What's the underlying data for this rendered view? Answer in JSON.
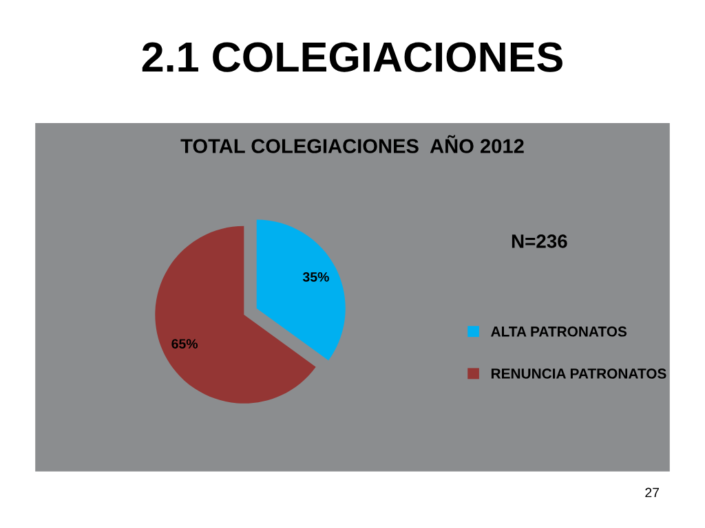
{
  "chart_data": {
    "type": "pie",
    "title": "2.1 COLEGIACIONES",
    "subtitle": "TOTAL COLEGIACIONES  AÑO 2012",
    "categories": [
      "ALTA PATRONATOS",
      "RENUNCIA PATRONATOS"
    ],
    "values": [
      35,
      65
    ],
    "colors": [
      "#00b0f0",
      "#943634"
    ],
    "value_labels": [
      "35%",
      "65%"
    ],
    "legend": "right",
    "annotations": [
      "N=236",
      "27"
    ]
  }
}
